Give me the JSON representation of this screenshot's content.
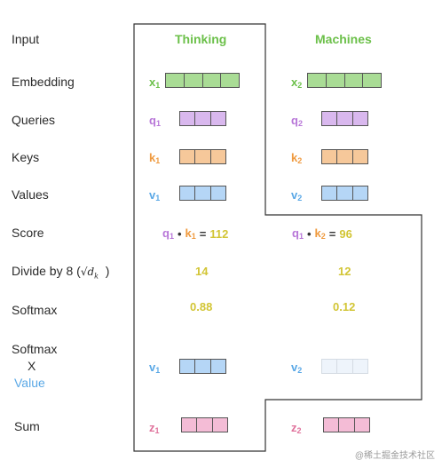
{
  "row_labels": {
    "input": "Input",
    "embedding": "Embedding",
    "queries": "Queries",
    "keys": "Keys",
    "values": "Values",
    "score": "Score",
    "divide_prefix": "Divide by 8 (",
    "divide_sqrt": "√d",
    "divide_sub": "k",
    "divide_suffix": ")",
    "softmax": "Softmax",
    "softmax_value_line1": "Softmax",
    "softmax_value_line2": "X",
    "softmax_value_line3": "Value",
    "sum": "Sum"
  },
  "columns": [
    {
      "word": "Thinking",
      "x": {
        "letter": "x",
        "sub": "1"
      },
      "q": {
        "letter": "q",
        "sub": "1"
      },
      "k": {
        "letter": "k",
        "sub": "1"
      },
      "v": {
        "letter": "v",
        "sub": "1"
      },
      "score": {
        "q_letter": "q",
        "q_sub": "1",
        "dot": "•",
        "k_letter": "k",
        "k_sub": "1",
        "eq": "=",
        "value": "112"
      },
      "divided": "14",
      "softmax": "0.88",
      "weighted_v": {
        "letter": "v",
        "sub": "1"
      },
      "z": {
        "letter": "z",
        "sub": "1"
      }
    },
    {
      "word": "Machines",
      "x": {
        "letter": "x",
        "sub": "2"
      },
      "q": {
        "letter": "q",
        "sub": "2"
      },
      "k": {
        "letter": "k",
        "sub": "2"
      },
      "v": {
        "letter": "v",
        "sub": "2"
      },
      "score": {
        "q_letter": "q",
        "q_sub": "1",
        "dot": "•",
        "k_letter": "k",
        "k_sub": "2",
        "eq": "=",
        "value": "96"
      },
      "divided": "12",
      "softmax": "0.12",
      "weighted_v": {
        "letter": "v",
        "sub": "2"
      },
      "z": {
        "letter": "z",
        "sub": "2"
      }
    }
  ],
  "colors": {
    "embedding": "#a9dc95",
    "query": "#d9b8ee",
    "key": "#f6c89a",
    "value": "#b5d6f6",
    "value_faded": "#eef4fb",
    "sum": "#f4bcd6",
    "number": "#d2c535",
    "outline": "#333333"
  },
  "watermark": "@稀土掘金技术社区"
}
